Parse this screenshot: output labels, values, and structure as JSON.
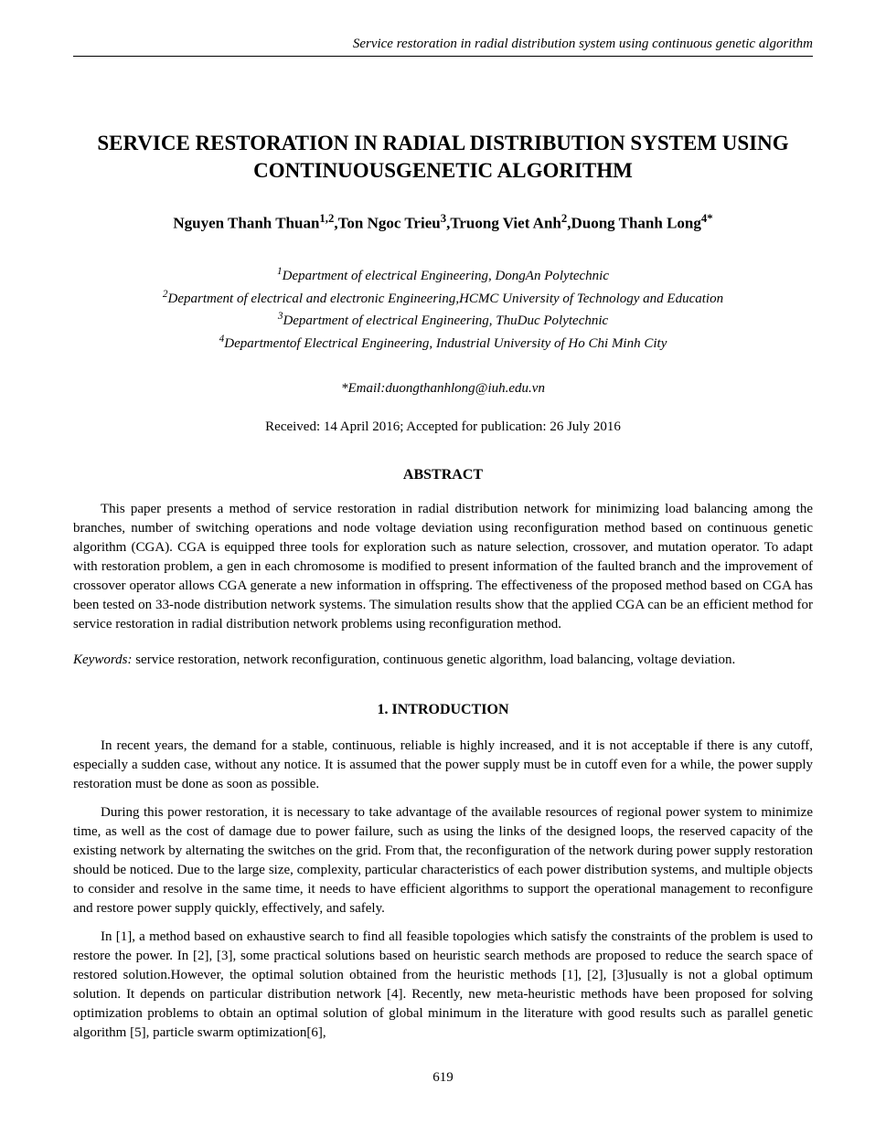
{
  "running_header": "Service restoration in radial distribution system using continuous genetic algorithm",
  "title": "SERVICE RESTORATION IN RADIAL DISTRIBUTION SYSTEM USING CONTINUOUSGENETIC ALGORITHM",
  "authors_html": "Nguyen Thanh Thuan<sup>1,2</sup>,Ton Ngoc Trieu<sup>3</sup>,Truong Viet Anh<sup>2</sup>,Duong Thanh Long<sup>4*</sup>",
  "affiliations": [
    "<sup>1</sup>Department of electrical Engineering, DongAn Polytechnic",
    "<sup>2</sup>Department of electrical and electronic Engineering,HCMC University of Technology and Education",
    "<sup>3</sup>Department of electrical Engineering, ThuDuc Polytechnic",
    "<sup>4</sup>Departmentof Electrical Engineering, Industrial University of Ho Chi Minh City"
  ],
  "email_prefix": "*Email:",
  "email": "duongthanhlong@iuh.edu.vn",
  "dates": "Received: 14 April 2016; Accepted for publication: 26 July 2016",
  "abstract_heading": "ABSTRACT",
  "abstract_text": "This paper presents a method of service restoration in radial distribution network for minimizing load balancing among the branches, number of switching operations and node voltage deviation using reconfiguration method based on continuous genetic algorithm (CGA). CGA is equipped three tools for exploration such as nature selection, crossover, and mutation operator. To adapt with restoration problem, a gen in each chromosome is modified to present information of the faulted branch and the improvement of crossover operator allows CGA generate a new information in offspring. The effectiveness of the proposed method based on CGA has been tested on 33-node distribution network systems. The simulation results show that the applied CGA can be an efficient method for service restoration in radial distribution network problems using reconfiguration method.",
  "keywords_label": "Keywords:",
  "keywords_text": " service restoration, network reconfiguration, continuous genetic algorithm, load balancing, voltage deviation.",
  "intro_heading": "1.   INTRODUCTION",
  "paragraphs": [
    "In recent years, the demand for a stable, continuous, reliable is highly increased, and it is not acceptable if there is any cutoff, especially a sudden case, without any notice. It is assumed that the power supply must be in cutoff even for a while, the power supply restoration must be done as soon as possible.",
    "During this power restoration, it is necessary to take advantage of the available resources of regional power system to minimize time, as well as the cost of damage due to power failure, such as using the links of the designed loops, the reserved capacity of the existing network by alternating the switches on the grid. From that, the reconfiguration of the network during power supply restoration should be noticed. Due to the large size, complexity, particular characteristics of each power distribution systems, and multiple objects to consider and resolve in the same time, it needs to have efficient algorithms to support the operational management to reconfigure and restore power supply quickly, effectively, and safely.",
    "In [1], a method based on exhaustive search to find all feasible topologies which satisfy the constraints of the problem is used to restore the power. In [2], [3], some practical solutions based on heuristic search methods are proposed to reduce the search  space of restored solution.However, the optimal solution obtained from the heuristic methods [1], [2], [3]usually is not a global optimum solution. It depends on particular distribution network [4]. Recently, new meta-heuristic methods have been proposed for solving optimization problems to obtain an optimal solution of global minimum in the literature with good results such as parallel genetic algorithm [5], particle swarm optimization[6],"
  ],
  "page_number": "619"
}
